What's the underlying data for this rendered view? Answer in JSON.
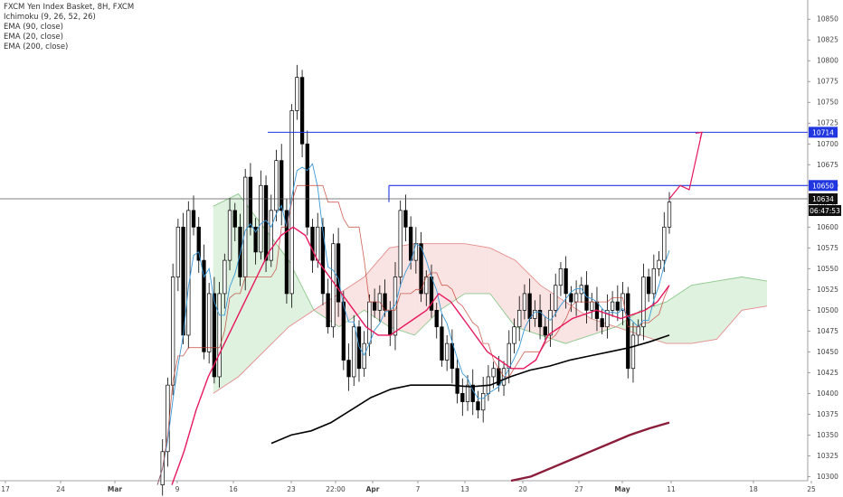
{
  "legend": {
    "title": "FXCM Yen Index Basket, 8H, FXCM",
    "ichimoku": "Ichimoku (9, 26, 52, 26)",
    "ema90": "EMA (90, close)",
    "ema20": "EMA (20, close)",
    "ema200": "EMA (200, close)"
  },
  "colors": {
    "candle": "#000000",
    "ema20": "#e8175d",
    "ema90": "#000000",
    "ema200": "#8b1c3a",
    "conversion": "#3a9ad9",
    "base": "#c0392b",
    "cloud_bull_fill": "#d4ecd4",
    "cloud_bull_line": "#8cc98c",
    "cloud_bear_fill": "#f8d9d9",
    "cloud_bear_line": "#e58c8c",
    "level_line": "#1f36e0",
    "projection": "#e8175d",
    "price_line": "#555555"
  },
  "chart_data": {
    "type": "candlestick",
    "y_ticks": [
      "10850",
      "10825",
      "10800",
      "10775",
      "10750",
      "10725",
      "10700",
      "10675",
      "10650",
      "10625",
      "10600",
      "10575",
      "10550",
      "10525",
      "10500",
      "10475",
      "10450",
      "10425",
      "10400",
      "10375",
      "10350",
      "10325",
      "10300"
    ],
    "x_ticks": [
      "17",
      "24",
      "Mar",
      "9",
      "16",
      "23",
      "22:00",
      "Apr",
      "7",
      "13",
      "20",
      "27",
      "May",
      "11",
      "18",
      "25"
    ],
    "ylim": [
      10295,
      10860
    ],
    "levels": [
      {
        "label": "10714",
        "value": 10714,
        "start_tick": "16"
      },
      {
        "label": "10650",
        "value": 10650,
        "start_tick": "Apr"
      }
    ],
    "last_price": {
      "label": "10634",
      "value": 10634
    },
    "countdown": "06:47:53",
    "close_path": [
      10290,
      10330,
      10410,
      10540,
      10600,
      10470,
      10620,
      10600,
      10560,
      10450,
      10520,
      10420,
      10520,
      10560,
      10620,
      10600,
      10540,
      10660,
      10600,
      10570,
      10650,
      10560,
      10620,
      10680,
      10620,
      10520,
      10740,
      10780,
      10700,
      10600,
      10560,
      10600,
      10520,
      10480,
      10580,
      10510,
      10440,
      10420,
      10480,
      10430,
      10460,
      10510,
      10500,
      10520,
      10500,
      10470,
      10540,
      10620,
      10600,
      10560,
      10580,
      10520,
      10540,
      10500,
      10480,
      10440,
      10460,
      10430,
      10400,
      10390,
      10410,
      10390,
      10380,
      10400,
      10420,
      10430,
      10410,
      10430,
      10460,
      10480,
      10500,
      10520,
      10490,
      10500,
      10480,
      10470,
      10500,
      10530,
      10550,
      10520,
      10510,
      10520,
      10530,
      10500,
      10510,
      10490,
      10480,
      10500,
      10510,
      10500,
      10520,
      10430,
      10470,
      10480,
      10540,
      10520,
      10550,
      10560,
      10600,
      10630
    ],
    "ema20_path": [
      10290,
      10330,
      10380,
      10420,
      10450,
      10480,
      10510,
      10540,
      10570,
      10590,
      10600,
      10590,
      10560,
      10540,
      10520,
      10500,
      10480,
      10470,
      10470,
      10480,
      10490,
      10500,
      10520,
      10510,
      10490,
      10470,
      10450,
      10440,
      10430,
      10430,
      10440,
      10470,
      10480,
      10490,
      10495,
      10500,
      10495,
      10490,
      10495,
      10500,
      10510,
      10530
    ],
    "ema90_path": [
      10340,
      10350,
      10355,
      10365,
      10380,
      10395,
      10405,
      10410,
      10410,
      10410,
      10408,
      10410,
      10420,
      10428,
      10433,
      10440,
      10445,
      10450,
      10455,
      10462,
      10470
    ],
    "ema200_path": [
      10295,
      10300,
      10310,
      10320,
      10330,
      10340,
      10350,
      10358,
      10365
    ],
    "projection_path": [
      10634,
      10650,
      10645,
      10714
    ],
    "cloud_span_a": [
      null,
      null,
      10625,
      10640,
      10600,
      10560,
      10500,
      10480,
      10500,
      10480,
      10470,
      10500,
      10520,
      10520,
      10480,
      10470,
      10460,
      10470,
      10480,
      10500,
      10510,
      10530,
      10535,
      10540,
      10535
    ],
    "cloud_span_b": [
      null,
      null,
      10400,
      10420,
      10450,
      10480,
      10500,
      10520,
      10540,
      10575,
      10580,
      10580,
      10580,
      10575,
      10560,
      10530,
      10510,
      10490,
      10480,
      10470,
      10460,
      10460,
      10465,
      10500,
      10505
    ]
  }
}
